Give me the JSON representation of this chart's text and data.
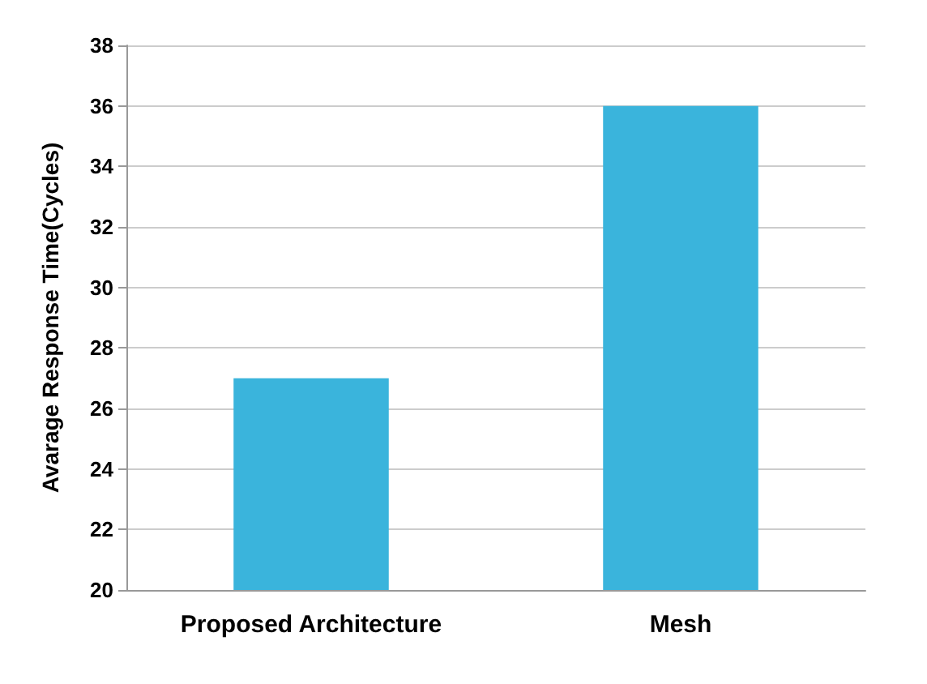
{
  "chart_data": {
    "type": "bar",
    "ylabel": "Avarage Response Time(Cycles)",
    "categories": [
      "Proposed Architecture",
      "Mesh"
    ],
    "values": [
      27,
      36
    ],
    "color": "#3ab4dc",
    "ylim": [
      20,
      38
    ],
    "yticks": [
      20,
      22,
      24,
      26,
      28,
      30,
      32,
      34,
      36,
      38
    ],
    "grid": "y"
  }
}
